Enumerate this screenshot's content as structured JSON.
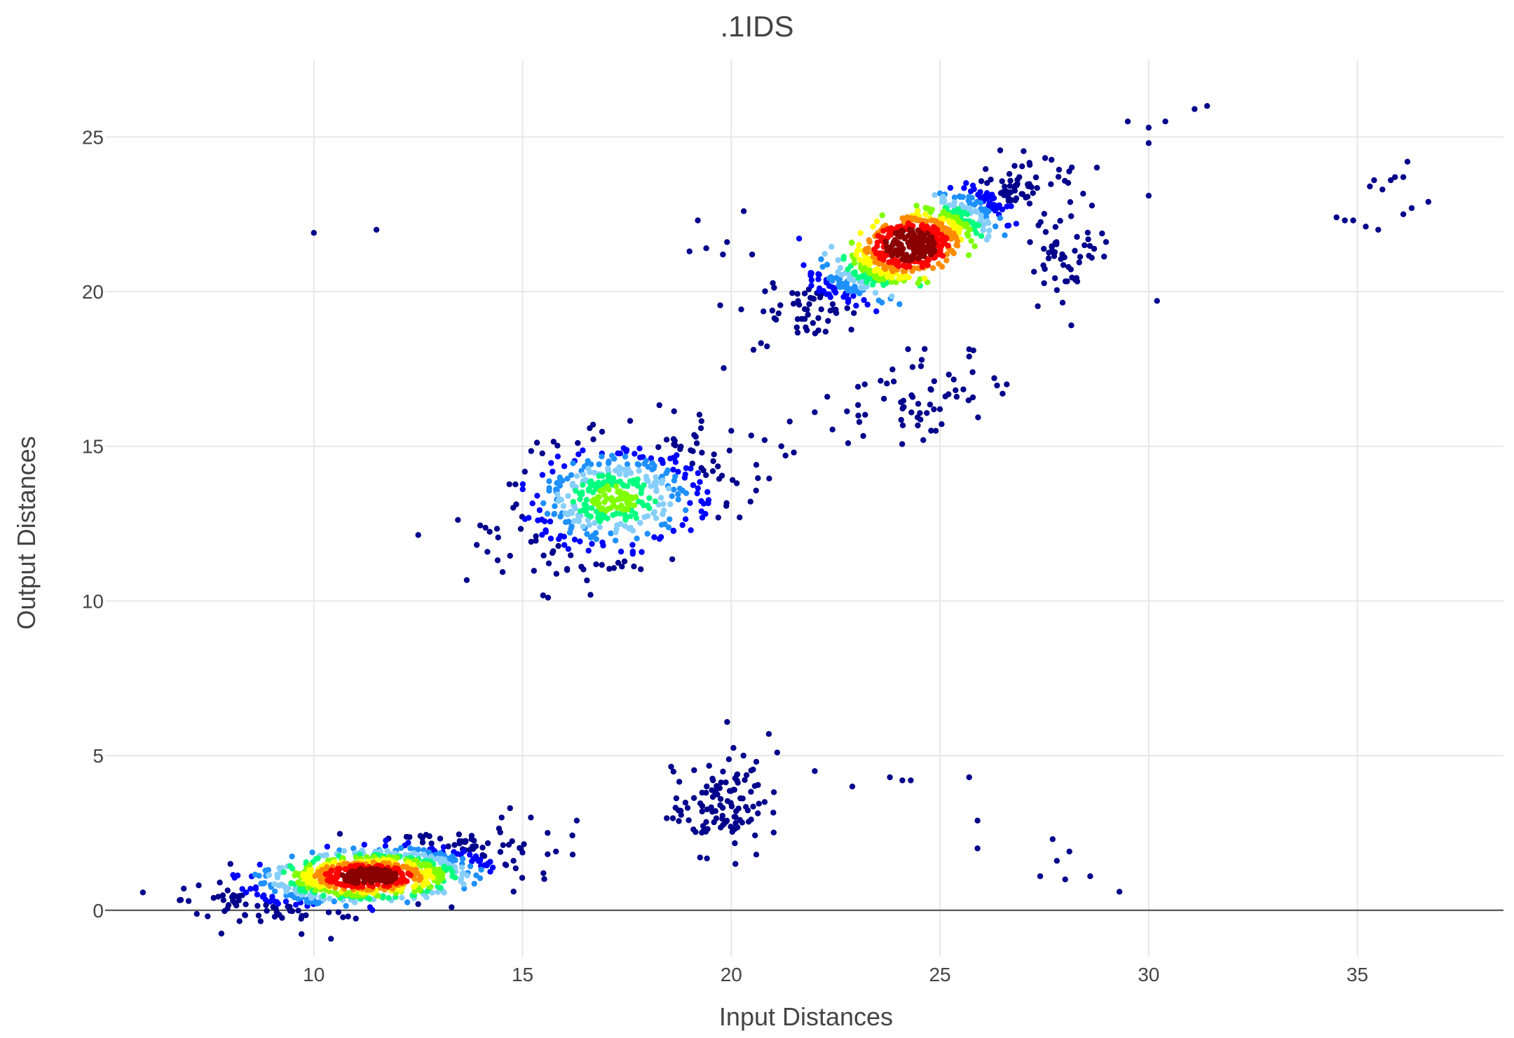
{
  "chart_data": {
    "type": "scatter",
    "title": ".1IDS",
    "xlabel": "Input Distances",
    "ylabel": "Output Distances",
    "xlim": [
      5,
      38.5
    ],
    "ylim": [
      -1.5,
      27.5
    ],
    "xticks": [
      "10",
      "15",
      "20",
      "25",
      "30",
      "35"
    ],
    "yticks": [
      "0",
      "5",
      "10",
      "15",
      "20",
      "25"
    ],
    "grid": true,
    "legend": "none",
    "colorscale": [
      "#00008b",
      "#0000ff",
      "#1e90ff",
      "#87cefa",
      "#00ff7f",
      "#7fff00",
      "#ffff00",
      "#ff8c00",
      "#ff0000",
      "#8b0000"
    ],
    "clusters": [
      {
        "cx": 11.3,
        "cy": 1.1,
        "sx": 1.55,
        "sy": 0.55,
        "corr": 0.55,
        "n": 900,
        "peak": 1.0
      },
      {
        "cx": 17.2,
        "cy": 13.3,
        "sx": 1.25,
        "sy": 1.0,
        "corr": 0.35,
        "n": 500,
        "peak": 0.55
      },
      {
        "cx": 24.3,
        "cy": 21.5,
        "sx": 1.35,
        "sy": 1.1,
        "corr": 0.85,
        "n": 850,
        "peak": 1.0
      },
      {
        "cx": 19.7,
        "cy": 3.4,
        "sx": 0.55,
        "sy": 0.75,
        "corr": 0.2,
        "n": 110,
        "peak": 0.0
      },
      {
        "cx": 24.4,
        "cy": 16.6,
        "sx": 0.9,
        "sy": 0.8,
        "corr": 0.4,
        "n": 55,
        "peak": 0.0
      },
      {
        "cx": 28.1,
        "cy": 21.3,
        "sx": 0.5,
        "sy": 0.8,
        "corr": 0.2,
        "n": 55,
        "peak": 0.0
      }
    ],
    "outliers": [
      [
        10.0,
        21.9
      ],
      [
        11.5,
        22.0
      ],
      [
        19.0,
        21.3
      ],
      [
        19.2,
        22.3
      ],
      [
        19.4,
        21.4
      ],
      [
        19.8,
        21.2
      ],
      [
        19.9,
        21.6
      ],
      [
        20.3,
        22.6
      ],
      [
        20.5,
        21.2
      ],
      [
        21.2,
        15.0
      ],
      [
        21.3,
        14.7
      ],
      [
        21.5,
        14.8
      ],
      [
        20.8,
        15.2
      ],
      [
        21.4,
        15.8
      ],
      [
        20.2,
        12.7
      ],
      [
        20.0,
        15.5
      ],
      [
        20.6,
        14.4
      ],
      [
        22.0,
        16.1
      ],
      [
        22.3,
        16.6
      ],
      [
        22.8,
        15.1
      ],
      [
        25.7,
        17.9
      ],
      [
        25.8,
        18.1
      ],
      [
        26.3,
        17.2
      ],
      [
        26.6,
        17.0
      ],
      [
        26.5,
        16.7
      ],
      [
        25.4,
        16.6
      ],
      [
        25.0,
        16.2
      ],
      [
        24.9,
        15.5
      ],
      [
        24.6,
        15.2
      ],
      [
        29.5,
        25.5
      ],
      [
        30.0,
        25.3
      ],
      [
        30.4,
        25.5
      ],
      [
        31.1,
        25.9
      ],
      [
        31.4,
        26.0
      ],
      [
        30.0,
        24.8
      ],
      [
        30.0,
        23.1
      ],
      [
        30.2,
        19.7
      ],
      [
        34.5,
        22.4
      ],
      [
        34.7,
        22.3
      ],
      [
        34.9,
        22.3
      ],
      [
        35.2,
        22.1
      ],
      [
        35.5,
        22.0
      ],
      [
        35.3,
        23.4
      ],
      [
        35.4,
        23.6
      ],
      [
        35.6,
        23.3
      ],
      [
        35.8,
        23.6
      ],
      [
        35.9,
        23.7
      ],
      [
        36.1,
        23.7
      ],
      [
        36.2,
        24.2
      ],
      [
        36.3,
        22.7
      ],
      [
        36.1,
        22.5
      ],
      [
        36.7,
        22.9
      ],
      [
        22.0,
        4.5
      ],
      [
        22.9,
        4.0
      ],
      [
        23.8,
        4.3
      ],
      [
        24.1,
        4.2
      ],
      [
        24.3,
        4.2
      ],
      [
        25.7,
        4.3
      ],
      [
        25.9,
        2.9
      ],
      [
        25.9,
        2.0
      ],
      [
        27.4,
        1.1
      ],
      [
        27.7,
        2.3
      ],
      [
        27.8,
        1.6
      ],
      [
        28.0,
        1.0
      ],
      [
        28.1,
        1.9
      ],
      [
        28.6,
        1.1
      ],
      [
        29.3,
        0.6
      ],
      [
        20.9,
        5.7
      ],
      [
        21.1,
        5.1
      ],
      [
        20.6,
        4.8
      ],
      [
        20.8,
        3.5
      ],
      [
        20.6,
        1.8
      ],
      [
        20.1,
        1.5
      ],
      [
        15.2,
        3.0
      ],
      [
        15.6,
        2.5
      ],
      [
        15.8,
        1.9
      ],
      [
        16.3,
        2.9
      ],
      [
        16.2,
        1.8
      ],
      [
        15.5,
        1.2
      ],
      [
        14.7,
        3.3
      ],
      [
        14.5,
        3.0
      ],
      [
        13.3,
        0.1
      ],
      [
        12.5,
        0.2
      ],
      [
        7.0,
        0.3
      ],
      [
        7.6,
        0.4
      ],
      [
        8.0,
        1.5
      ]
    ]
  }
}
